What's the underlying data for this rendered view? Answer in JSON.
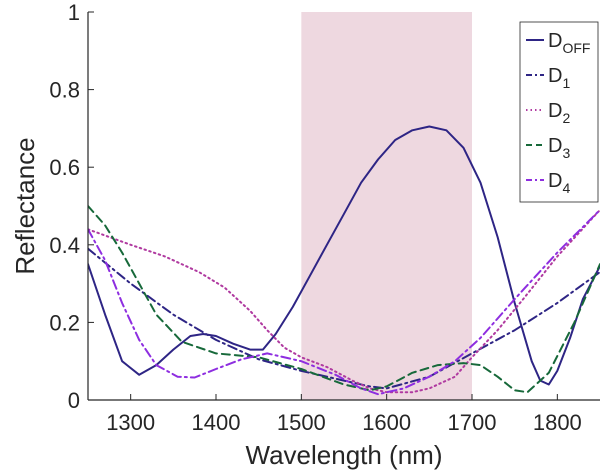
{
  "chart_data": {
    "type": "line",
    "title": "",
    "xlabel": "Wavelength (nm)",
    "ylabel": "Reflectance",
    "xlim": [
      1250,
      1850
    ],
    "ylim": [
      0,
      1
    ],
    "xticks": [
      "1300",
      "1400",
      "1500",
      "1600",
      "1700",
      "1800"
    ],
    "yticks": [
      "0",
      "0.2",
      "0.4",
      "0.6",
      "0.8",
      "1"
    ],
    "grid": false,
    "legend_position": "top-right",
    "shaded_band": {
      "x_start": 1500,
      "x_end": 1700,
      "color": "#eed8e0"
    },
    "series": [
      {
        "name": "D",
        "subscript": "OFF",
        "color": "#2e2585",
        "dash": "solid",
        "points": [
          [
            1250,
            0.35
          ],
          [
            1270,
            0.22
          ],
          [
            1290,
            0.1
          ],
          [
            1310,
            0.065
          ],
          [
            1330,
            0.09
          ],
          [
            1350,
            0.13
          ],
          [
            1370,
            0.165
          ],
          [
            1385,
            0.17
          ],
          [
            1400,
            0.165
          ],
          [
            1420,
            0.145
          ],
          [
            1440,
            0.13
          ],
          [
            1455,
            0.13
          ],
          [
            1470,
            0.17
          ],
          [
            1490,
            0.24
          ],
          [
            1510,
            0.32
          ],
          [
            1530,
            0.4
          ],
          [
            1550,
            0.48
          ],
          [
            1570,
            0.56
          ],
          [
            1590,
            0.62
          ],
          [
            1610,
            0.67
          ],
          [
            1630,
            0.695
          ],
          [
            1650,
            0.705
          ],
          [
            1670,
            0.695
          ],
          [
            1690,
            0.65
          ],
          [
            1710,
            0.56
          ],
          [
            1730,
            0.42
          ],
          [
            1750,
            0.25
          ],
          [
            1770,
            0.1
          ],
          [
            1780,
            0.05
          ],
          [
            1790,
            0.04
          ],
          [
            1800,
            0.075
          ],
          [
            1815,
            0.16
          ],
          [
            1830,
            0.26
          ],
          [
            1850,
            0.345
          ]
        ]
      },
      {
        "name": "D",
        "subscript": "1",
        "color": "#2e2585",
        "dash": "dashdot",
        "points": [
          [
            1250,
            0.39
          ],
          [
            1300,
            0.3
          ],
          [
            1350,
            0.22
          ],
          [
            1400,
            0.155
          ],
          [
            1450,
            0.105
          ],
          [
            1500,
            0.075
          ],
          [
            1550,
            0.05
          ],
          [
            1580,
            0.035
          ],
          [
            1600,
            0.03
          ],
          [
            1650,
            0.06
          ],
          [
            1700,
            0.12
          ],
          [
            1750,
            0.18
          ],
          [
            1800,
            0.25
          ],
          [
            1850,
            0.33
          ]
        ]
      },
      {
        "name": "D",
        "subscript": "2",
        "color": "#b03aa0",
        "dash": "dotted",
        "points": [
          [
            1250,
            0.44
          ],
          [
            1300,
            0.4
          ],
          [
            1340,
            0.37
          ],
          [
            1380,
            0.33
          ],
          [
            1410,
            0.29
          ],
          [
            1440,
            0.23
          ],
          [
            1460,
            0.18
          ],
          [
            1480,
            0.135
          ],
          [
            1500,
            0.11
          ],
          [
            1530,
            0.085
          ],
          [
            1560,
            0.05
          ],
          [
            1580,
            0.03
          ],
          [
            1600,
            0.02
          ],
          [
            1630,
            0.02
          ],
          [
            1650,
            0.03
          ],
          [
            1680,
            0.06
          ],
          [
            1700,
            0.11
          ],
          [
            1730,
            0.18
          ],
          [
            1760,
            0.26
          ],
          [
            1800,
            0.37
          ],
          [
            1850,
            0.49
          ]
        ]
      },
      {
        "name": "D",
        "subscript": "3",
        "color": "#17693a",
        "dash": "dashed",
        "points": [
          [
            1250,
            0.5
          ],
          [
            1270,
            0.45
          ],
          [
            1290,
            0.38
          ],
          [
            1310,
            0.3
          ],
          [
            1330,
            0.22
          ],
          [
            1360,
            0.15
          ],
          [
            1400,
            0.12
          ],
          [
            1450,
            0.11
          ],
          [
            1500,
            0.08
          ],
          [
            1550,
            0.04
          ],
          [
            1580,
            0.025
          ],
          [
            1600,
            0.035
          ],
          [
            1630,
            0.07
          ],
          [
            1660,
            0.09
          ],
          [
            1690,
            0.095
          ],
          [
            1710,
            0.09
          ],
          [
            1730,
            0.06
          ],
          [
            1750,
            0.025
          ],
          [
            1765,
            0.02
          ],
          [
            1790,
            0.07
          ],
          [
            1820,
            0.2
          ],
          [
            1850,
            0.35
          ]
        ]
      },
      {
        "name": "D",
        "subscript": "4",
        "color": "#8e2ee0",
        "dash": "dashdot",
        "points": [
          [
            1250,
            0.44
          ],
          [
            1270,
            0.36
          ],
          [
            1290,
            0.25
          ],
          [
            1310,
            0.155
          ],
          [
            1330,
            0.09
          ],
          [
            1355,
            0.06
          ],
          [
            1375,
            0.058
          ],
          [
            1400,
            0.08
          ],
          [
            1430,
            0.105
          ],
          [
            1460,
            0.12
          ],
          [
            1500,
            0.1
          ],
          [
            1540,
            0.065
          ],
          [
            1570,
            0.03
          ],
          [
            1590,
            0.015
          ],
          [
            1620,
            0.03
          ],
          [
            1650,
            0.06
          ],
          [
            1680,
            0.1
          ],
          [
            1710,
            0.16
          ],
          [
            1750,
            0.26
          ],
          [
            1800,
            0.38
          ],
          [
            1850,
            0.49
          ]
        ]
      }
    ]
  }
}
